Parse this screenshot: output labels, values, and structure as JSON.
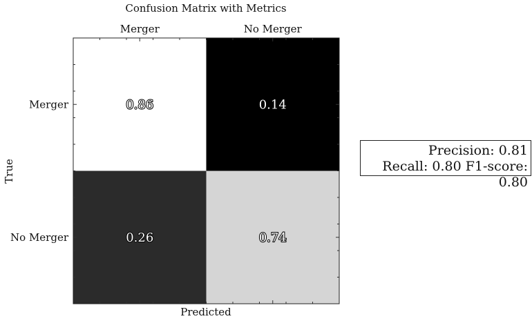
{
  "chart_data": {
    "type": "heatmap",
    "title": "Confusion Matrix with Metrics",
    "xlabel": "Predicted",
    "ylabel": "True",
    "x_categories": [
      "Merger",
      "No Merger"
    ],
    "y_categories": [
      "Merger",
      "No Merger"
    ],
    "values": [
      [
        0.86,
        0.14
      ],
      [
        0.26,
        0.74
      ]
    ],
    "value_labels": [
      [
        "0.86",
        "0.14"
      ],
      [
        "0.26",
        "0.74"
      ]
    ],
    "colormap": "grayscale (higher value = lighter)",
    "x_tick_position": "top",
    "grid": false
  },
  "metrics_box": {
    "line1": "Precision: 0.81",
    "line2": "Recall: 0.80 F1-score: 0.80"
  }
}
